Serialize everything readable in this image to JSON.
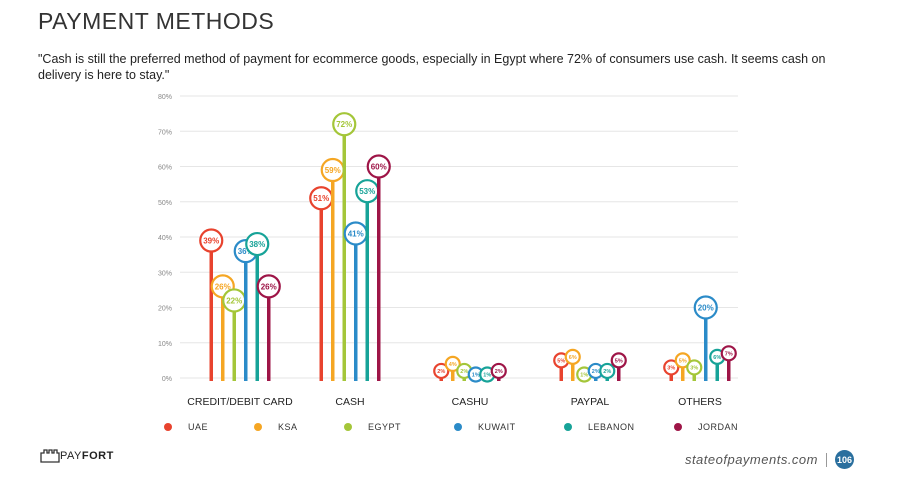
{
  "header": {
    "title": "PAYMENT METHODS",
    "quote": "\"Cash is still the preferred method of payment for ecommerce goods, especially in Egypt where 72% of consumers use cash. It seems cash on delivery is here to stay.\""
  },
  "footer": {
    "logo_pay": "PAY",
    "logo_fort": "FORT",
    "site": "stateofpayments.com",
    "page": "106"
  },
  "chart_data": {
    "type": "bar",
    "categories": [
      "CREDIT/DEBIT CARD",
      "CASH",
      "CASHU",
      "PAYPAL",
      "OTHERS"
    ],
    "ylim": [
      0,
      80
    ],
    "yticks": [
      "0%",
      "10%",
      "20%",
      "30%",
      "40%",
      "50%",
      "60%",
      "70%",
      "80%"
    ],
    "grid": true,
    "legend_position": "bottom",
    "series": [
      {
        "name": "UAE",
        "color": "#e8432e",
        "values": [
          39,
          51,
          2,
          5,
          3
        ]
      },
      {
        "name": "KSA",
        "color": "#f5a623",
        "values": [
          26,
          59,
          4,
          6,
          5
        ]
      },
      {
        "name": "EGYPT",
        "color": "#a4c639",
        "values": [
          22,
          72,
          2,
          1,
          3
        ]
      },
      {
        "name": "KUWAIT",
        "color": "#2b8bc8",
        "values": [
          36,
          41,
          1,
          2,
          20
        ]
      },
      {
        "name": "LEBANON",
        "color": "#17a398",
        "values": [
          38,
          53,
          1,
          2,
          6
        ]
      },
      {
        "name": "JORDAN",
        "color": "#9e1547",
        "values": [
          26,
          60,
          2,
          5,
          7
        ]
      }
    ]
  }
}
